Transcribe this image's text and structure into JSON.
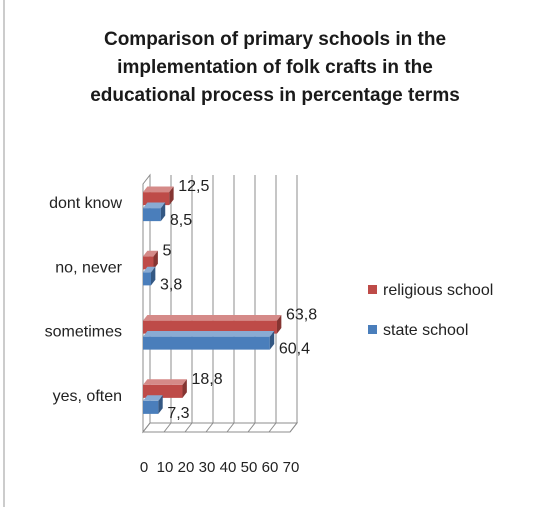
{
  "chart_data": {
    "type": "bar",
    "orientation": "horizontal",
    "style": "3d-clustered",
    "title_lines": [
      "Comparison of primary schools in the",
      "implementation of folk crafts in the",
      "educational process in percentage terms"
    ],
    "categories": [
      "yes, often",
      "sometimes",
      "no, never",
      "dont know"
    ],
    "series": [
      {
        "name": "state school",
        "values": [
          7.3,
          60.4,
          3.8,
          8.5
        ],
        "labels": [
          "7,3",
          "60,4",
          "3,8",
          "8,5"
        ],
        "color": "#4a7ebb"
      },
      {
        "name": "religious school",
        "values": [
          18.8,
          63.8,
          5,
          12.5
        ],
        "labels": [
          "18,8",
          "63,8",
          "5",
          "12,5"
        ],
        "color": "#be4b48"
      }
    ],
    "xaxis": {
      "min": 0,
      "max": 70,
      "step": 10,
      "tick_labels": [
        "0",
        "10",
        "20",
        "30",
        "40",
        "50",
        "60",
        "70"
      ]
    },
    "legend_position": "right",
    "grid": true
  }
}
